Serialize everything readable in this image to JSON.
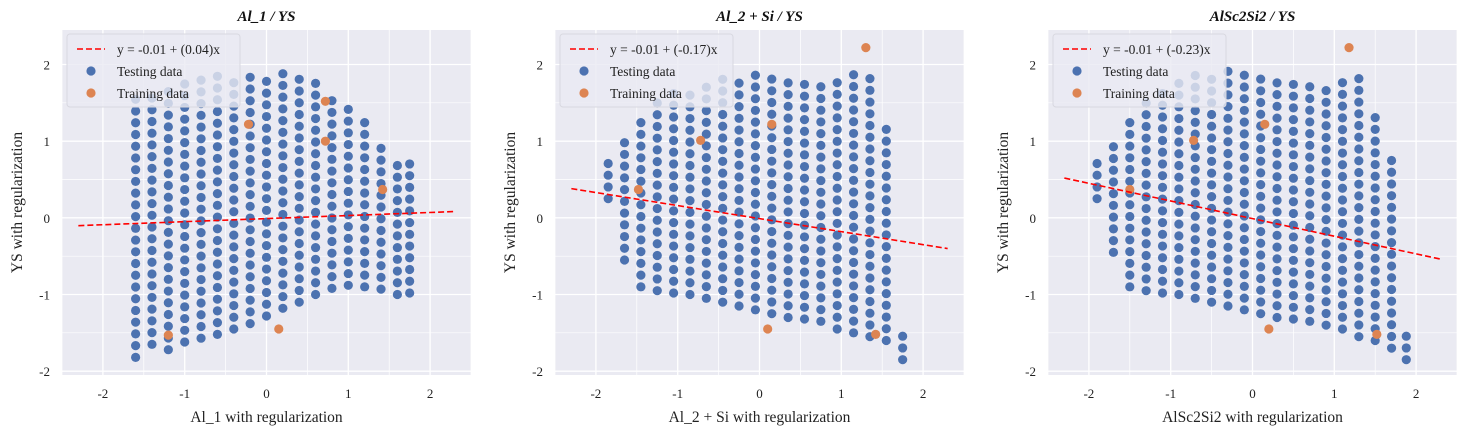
{
  "chart_data": [
    {
      "type": "scatter",
      "title": "Al_1 / YS",
      "xlabel": "Al_1 with regularization",
      "ylabel": "YS with regularization",
      "xlim": [
        -2.5,
        2.5
      ],
      "ylim": [
        -2.05,
        2.45
      ],
      "xticks": [
        -2,
        -1,
        0,
        1,
        2
      ],
      "yticks": [
        -2,
        -1,
        0,
        1,
        2
      ],
      "grid": true,
      "legend_position": "top-left",
      "fit": {
        "label": "y = -0.01 + (0.04)x",
        "intercept": -0.01,
        "slope": 0.04,
        "x_range": [
          -2.3,
          2.3
        ]
      },
      "testing_label": "Testing data",
      "training_label": "Training data",
      "training": [
        [
          -1.2,
          -1.53
        ],
        [
          0.15,
          -1.45
        ],
        [
          -0.22,
          1.22
        ],
        [
          0.72,
          1.0
        ],
        [
          0.72,
          1.52
        ],
        [
          1.42,
          0.37
        ]
      ],
      "testing_columns": [
        {
          "x": -1.6,
          "ymin": -1.82,
          "ymax": 1.55
        },
        {
          "x": -1.4,
          "ymin": -1.65,
          "ymax": 1.68
        },
        {
          "x": -1.2,
          "ymin": -1.72,
          "ymax": 1.78
        },
        {
          "x": -1.0,
          "ymin": -1.62,
          "ymax": 1.85
        },
        {
          "x": -0.8,
          "ymin": -1.57,
          "ymax": 1.88
        },
        {
          "x": -0.6,
          "ymin": -1.52,
          "ymax": 1.89
        },
        {
          "x": -0.4,
          "ymin": -1.45,
          "ymax": 1.9
        },
        {
          "x": -0.2,
          "ymin": -1.38,
          "ymax": 1.92
        },
        {
          "x": 0.0,
          "ymin": -1.28,
          "ymax": 1.92
        },
        {
          "x": 0.2,
          "ymin": -1.18,
          "ymax": 1.92
        },
        {
          "x": 0.4,
          "ymin": -1.1,
          "ymax": 1.87
        },
        {
          "x": 0.6,
          "ymin": -1.0,
          "ymax": 1.78
        },
        {
          "x": 0.8,
          "ymin": -0.92,
          "ymax": 1.62
        },
        {
          "x": 1.0,
          "ymin": -0.88,
          "ymax": 1.45
        },
        {
          "x": 1.2,
          "ymin": -0.9,
          "ymax": 1.28
        },
        {
          "x": 1.4,
          "ymin": -0.93,
          "ymax": 1.05
        },
        {
          "x": 1.6,
          "ymin": -1.0,
          "ymax": 0.82
        },
        {
          "x": 1.75,
          "ymin": -0.98,
          "ymax": 0.78
        }
      ],
      "testing_step": 0.153
    },
    {
      "type": "scatter",
      "title": "Al_2 + Si / YS",
      "xlabel": "Al_2 + Si with regularization",
      "ylabel": "YS with regularization",
      "xlim": [
        -2.5,
        2.5
      ],
      "ylim": [
        -2.05,
        2.45
      ],
      "xticks": [
        -2,
        -1,
        0,
        1,
        2
      ],
      "yticks": [
        -2,
        -1,
        0,
        1,
        2
      ],
      "grid": true,
      "legend_position": "top-left",
      "fit": {
        "label": "y = -0.01 + (-0.17)x",
        "intercept": -0.01,
        "slope": -0.17,
        "x_range": [
          -2.3,
          2.3
        ]
      },
      "testing_label": "Testing data",
      "training_label": "Training data",
      "training": [
        [
          -1.48,
          0.37
        ],
        [
          -0.72,
          1.01
        ],
        [
          0.15,
          1.22
        ],
        [
          0.1,
          -1.45
        ],
        [
          1.3,
          2.22
        ],
        [
          1.42,
          -1.52
        ]
      ],
      "testing_columns": [
        {
          "x": -1.85,
          "ymin": 0.25,
          "ymax": 0.75
        },
        {
          "x": -1.65,
          "ymin": -0.55,
          "ymax": 1.1
        },
        {
          "x": -1.45,
          "ymin": -0.9,
          "ymax": 1.3
        },
        {
          "x": -1.25,
          "ymin": -0.95,
          "ymax": 1.5
        },
        {
          "x": -1.05,
          "ymin": -0.98,
          "ymax": 1.65
        },
        {
          "x": -0.85,
          "ymin": -1.0,
          "ymax": 1.75
        },
        {
          "x": -0.65,
          "ymin": -1.05,
          "ymax": 1.85
        },
        {
          "x": -0.45,
          "ymin": -1.1,
          "ymax": 1.9
        },
        {
          "x": -0.25,
          "ymin": -1.15,
          "ymax": 1.9
        },
        {
          "x": -0.05,
          "ymin": -1.2,
          "ymax": 1.9
        },
        {
          "x": 0.15,
          "ymin": -1.25,
          "ymax": 1.85
        },
        {
          "x": 0.35,
          "ymin": -1.3,
          "ymax": 1.85
        },
        {
          "x": 0.55,
          "ymin": -1.32,
          "ymax": 1.8
        },
        {
          "x": 0.75,
          "ymin": -1.35,
          "ymax": 1.8
        },
        {
          "x": 0.95,
          "ymin": -1.45,
          "ymax": 1.78
        },
        {
          "x": 1.15,
          "ymin": -1.5,
          "ymax": 1.9
        },
        {
          "x": 1.35,
          "ymin": -1.55,
          "ymax": 1.85
        },
        {
          "x": 1.55,
          "ymin": -1.6,
          "ymax": 1.2
        },
        {
          "x": 1.75,
          "ymin": -1.85,
          "ymax": -1.5
        }
      ],
      "testing_step": 0.153
    },
    {
      "type": "scatter",
      "title": "AlSc2Si2 / YS",
      "xlabel": "AlSc2Si2 with regularization",
      "ylabel": "YS with regularization",
      "xlim": [
        -2.5,
        2.5
      ],
      "ylim": [
        -2.05,
        2.45
      ],
      "xticks": [
        -2,
        -1,
        0,
        1,
        2
      ],
      "yticks": [
        -2,
        -1,
        0,
        1,
        2
      ],
      "grid": true,
      "legend_position": "top-left",
      "fit": {
        "label": "y = -0.01 + (-0.23)x",
        "intercept": -0.01,
        "slope": -0.23,
        "x_range": [
          -2.3,
          2.3
        ]
      },
      "testing_label": "Testing data",
      "training_label": "Training data",
      "training": [
        [
          -1.5,
          0.37
        ],
        [
          -0.72,
          1.01
        ],
        [
          0.15,
          1.22
        ],
        [
          0.2,
          -1.45
        ],
        [
          1.18,
          2.22
        ],
        [
          1.52,
          -1.52
        ]
      ],
      "testing_columns": [
        {
          "x": -1.9,
          "ymin": 0.25,
          "ymax": 0.75
        },
        {
          "x": -1.7,
          "ymin": -0.45,
          "ymax": 1.05
        },
        {
          "x": -1.5,
          "ymin": -0.9,
          "ymax": 1.3
        },
        {
          "x": -1.3,
          "ymin": -0.95,
          "ymax": 1.5
        },
        {
          "x": -1.1,
          "ymin": -0.98,
          "ymax": 1.68
        },
        {
          "x": -0.9,
          "ymin": -1.0,
          "ymax": 1.8
        },
        {
          "x": -0.7,
          "ymin": -1.05,
          "ymax": 1.88
        },
        {
          "x": -0.5,
          "ymin": -1.1,
          "ymax": 1.92
        },
        {
          "x": -0.3,
          "ymin": -1.15,
          "ymax": 1.92
        },
        {
          "x": -0.1,
          "ymin": -1.2,
          "ymax": 1.9
        },
        {
          "x": 0.1,
          "ymin": -1.25,
          "ymax": 1.9
        },
        {
          "x": 0.3,
          "ymin": -1.3,
          "ymax": 1.88
        },
        {
          "x": 0.5,
          "ymin": -1.32,
          "ymax": 1.85
        },
        {
          "x": 0.7,
          "ymin": -1.35,
          "ymax": 1.82
        },
        {
          "x": 0.9,
          "ymin": -1.4,
          "ymax": 1.8
        },
        {
          "x": 1.1,
          "ymin": -1.45,
          "ymax": 1.85
        },
        {
          "x": 1.3,
          "ymin": -1.55,
          "ymax": 1.9
        },
        {
          "x": 1.5,
          "ymin": -1.6,
          "ymax": 1.45
        },
        {
          "x": 1.7,
          "ymin": -1.7,
          "ymax": 0.9
        },
        {
          "x": 1.88,
          "ymin": -1.85,
          "ymax": -1.5
        }
      ],
      "testing_step": 0.153
    }
  ],
  "colors": {
    "axes_bg": "#eaeaf2",
    "grid": "#ffffff",
    "testing": "#4c72b0",
    "training": "#dd8452",
    "fit_line": "#ff0000"
  }
}
